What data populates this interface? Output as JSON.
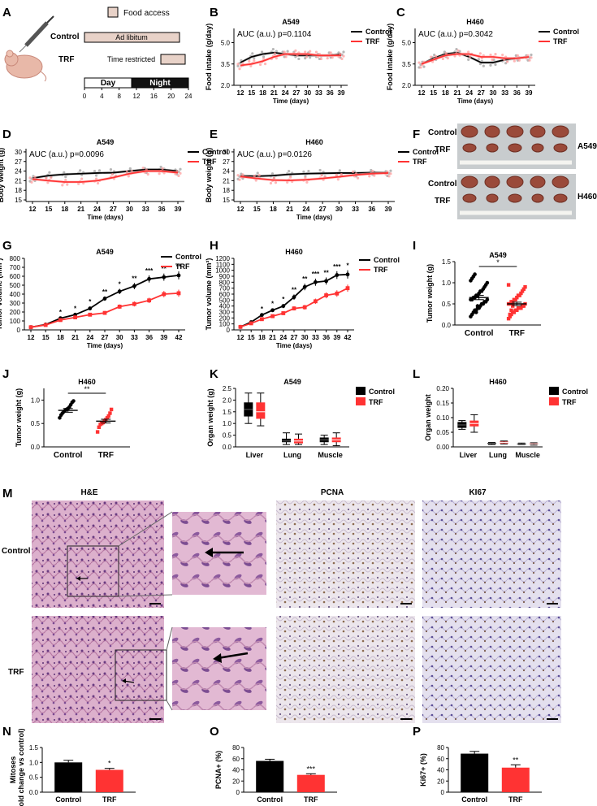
{
  "panel_letters": [
    "A",
    "B",
    "C",
    "D",
    "E",
    "F",
    "G",
    "H",
    "I",
    "J",
    "K",
    "L",
    "M",
    "N",
    "O",
    "P"
  ],
  "colors": {
    "control": "#000000",
    "trf": "#ff3333",
    "trf_light": "#ff9999",
    "grey": "#999999",
    "tissue_he": "#d9a7c4",
    "tissue_ihc": "#e8e0ea"
  },
  "schematic": {
    "legend": "Food access",
    "group_control": "Control",
    "group_trf": "TRF",
    "bar_control": "Ad libitum",
    "bar_trf": "Time restricted",
    "day": "Day",
    "night": "Night",
    "ticks": [
      "0",
      "4",
      "8",
      "12",
      "16",
      "20",
      "24"
    ]
  },
  "chart_data": [
    {
      "id": "B",
      "type": "line",
      "title": "A549",
      "annotation": "AUC (a.u.) p=0.1104",
      "xlabel": "Time (days)",
      "ylabel": "Food intake (g/day)",
      "x": [
        12,
        15,
        18,
        21,
        24,
        27,
        30,
        33,
        36,
        39
      ],
      "ylim": [
        2.0,
        6.0
      ],
      "yticks": [
        "2.0",
        "3.5",
        "5.0"
      ],
      "legend": [
        "Control",
        "TRF"
      ],
      "series": [
        {
          "name": "Control",
          "values": [
            3.6,
            4.0,
            4.2,
            4.3,
            4.2,
            4.1,
            4.1,
            4.1,
            4.1,
            4.2
          ]
        },
        {
          "name": "TRF",
          "values": [
            3.4,
            3.5,
            3.7,
            4.0,
            4.2,
            4.2,
            4.2,
            4.1,
            4.1,
            4.1
          ]
        }
      ]
    },
    {
      "id": "C",
      "type": "line",
      "title": "H460",
      "annotation": "AUC (a.u.) p=0.3042",
      "xlabel": "Time (days)",
      "ylabel": "Food intake (g/day)",
      "x": [
        12,
        15,
        18,
        21,
        24,
        27,
        30,
        33,
        36,
        39
      ],
      "ylim": [
        2.0,
        6.0
      ],
      "yticks": [
        "2.0",
        "3.5",
        "5.0"
      ],
      "legend": [
        "Control",
        "TRF"
      ],
      "series": [
        {
          "name": "Control",
          "values": [
            3.5,
            3.9,
            4.2,
            4.3,
            4.0,
            3.6,
            3.6,
            3.8,
            3.9,
            4.0
          ]
        },
        {
          "name": "TRF",
          "values": [
            3.5,
            3.8,
            4.1,
            4.2,
            4.2,
            4.0,
            4.0,
            3.9,
            3.9,
            4.0
          ]
        }
      ]
    },
    {
      "id": "D",
      "type": "line",
      "title": "A549",
      "annotation": "AUC (a.u.) p=0.0096",
      "xlabel": "Time (days)",
      "ylabel": "Body weight (g)",
      "x": [
        12,
        15,
        18,
        21,
        24,
        27,
        30,
        33,
        36,
        39
      ],
      "ylim": [
        14.5,
        31
      ],
      "yticks": [
        "15",
        "18",
        "21",
        "24",
        "27",
        "30"
      ],
      "legend": [
        "Control",
        "TRF"
      ],
      "series": [
        {
          "name": "Control",
          "values": [
            21.8,
            22.6,
            23.0,
            23.2,
            23.4,
            23.5,
            24.0,
            24.5,
            24.5,
            24.0
          ]
        },
        {
          "name": "TRF",
          "values": [
            21.5,
            21.0,
            20.6,
            20.6,
            21.0,
            22.0,
            23.2,
            24.0,
            24.0,
            23.5
          ]
        }
      ]
    },
    {
      "id": "E",
      "type": "line",
      "title": "H460",
      "annotation": "AUC (a.u.) p=0.0126",
      "xlabel": "Time (days)",
      "ylabel": "Body weight (g)",
      "x": [
        12,
        15,
        18,
        21,
        24,
        27,
        30,
        33,
        36,
        39
      ],
      "ylim": [
        14.5,
        31
      ],
      "yticks": [
        "15",
        "18",
        "21",
        "24",
        "27",
        "30"
      ],
      "legend": [
        "Control",
        "TRF"
      ],
      "series": [
        {
          "name": "Control",
          "values": [
            22.5,
            22.4,
            22.6,
            23.0,
            23.2,
            23.3,
            23.4,
            23.4,
            23.5,
            23.5
          ]
        },
        {
          "name": "TRF",
          "values": [
            22.3,
            21.7,
            21.2,
            21.1,
            21.3,
            21.7,
            22.2,
            22.8,
            23.2,
            23.4
          ]
        }
      ]
    },
    {
      "id": "G",
      "type": "line",
      "title": "A549",
      "xlabel": "Time (days)",
      "ylabel": "Tumor volume (mm³)",
      "x": [
        12,
        15,
        18,
        21,
        24,
        27,
        30,
        33,
        36,
        39,
        42
      ],
      "ylim": [
        0,
        800
      ],
      "yticks": [
        "0",
        "100",
        "200",
        "300",
        "400",
        "500",
        "600",
        "700",
        "800"
      ],
      "xticks": [
        "12",
        "15",
        "18",
        "21",
        "24",
        "27",
        "30",
        "33",
        "36",
        "39",
        "42"
      ],
      "legend": [
        "Control",
        "TRF"
      ],
      "annotations": [
        {
          "x": 18,
          "text": "*"
        },
        {
          "x": 21,
          "text": "*"
        },
        {
          "x": 24,
          "text": "*"
        },
        {
          "x": 27,
          "text": "**"
        },
        {
          "x": 30,
          "text": "*"
        },
        {
          "x": 33,
          "text": "**"
        },
        {
          "x": 36,
          "text": "***"
        },
        {
          "x": 39,
          "text": "**"
        },
        {
          "x": 42,
          "text": "**"
        }
      ],
      "series": [
        {
          "name": "Control",
          "values": [
            30,
            60,
            130,
            170,
            240,
            350,
            430,
            490,
            570,
            590,
            610
          ],
          "err": [
            5,
            8,
            15,
            18,
            22,
            25,
            30,
            35,
            40,
            40,
            45
          ]
        },
        {
          "name": "TRF",
          "values": [
            30,
            55,
            110,
            140,
            170,
            190,
            260,
            290,
            330,
            400,
            410
          ],
          "err": [
            5,
            8,
            12,
            15,
            18,
            20,
            25,
            28,
            30,
            35,
            40
          ]
        }
      ]
    },
    {
      "id": "H",
      "type": "line",
      "title": "H460",
      "xlabel": "Time (days)",
      "ylabel": "Tumor volume (mm³)",
      "x": [
        12,
        15,
        18,
        21,
        24,
        27,
        30,
        33,
        36,
        39,
        42
      ],
      "ylim": [
        0,
        1200
      ],
      "yticks": [
        "0",
        "100",
        "200",
        "300",
        "400",
        "500",
        "600",
        "700",
        "800",
        "900",
        "1000",
        "1100",
        "1200"
      ],
      "xticks": [
        "12",
        "15",
        "18",
        "21",
        "24",
        "27",
        "30",
        "33",
        "36",
        "39",
        "42"
      ],
      "legend": [
        "Control",
        "TRF"
      ],
      "annotations": [
        {
          "x": 18,
          "text": "*"
        },
        {
          "x": 21,
          "text": "*"
        },
        {
          "x": 24,
          "text": "*"
        },
        {
          "x": 27,
          "text": "**"
        },
        {
          "x": 30,
          "text": "**"
        },
        {
          "x": 33,
          "text": "***"
        },
        {
          "x": 36,
          "text": "**"
        },
        {
          "x": 39,
          "text": "***"
        },
        {
          "x": 42,
          "text": "*"
        }
      ],
      "series": [
        {
          "name": "Control",
          "values": [
            50,
            130,
            250,
            330,
            400,
            550,
            720,
            800,
            820,
            920,
            930
          ],
          "err": [
            8,
            15,
            25,
            30,
            35,
            45,
            55,
            60,
            60,
            65,
            70
          ]
        },
        {
          "name": "TRF",
          "values": [
            50,
            110,
            180,
            230,
            280,
            360,
            380,
            480,
            580,
            610,
            700
          ],
          "err": [
            8,
            12,
            20,
            25,
            30,
            35,
            40,
            45,
            50,
            55,
            60
          ]
        }
      ]
    },
    {
      "id": "I",
      "type": "scatter",
      "title": "A549",
      "ylabel": "Tumor weight (g)",
      "categories": [
        "Control",
        "TRF"
      ],
      "ylim": [
        0,
        1.5
      ],
      "yticks": [
        "0.0",
        "0.5",
        "1.0",
        "1.5"
      ],
      "sig": "*",
      "series": [
        {
          "name": "Control",
          "mean": 0.65,
          "sem": 0.05,
          "values": [
            0.2,
            0.25,
            0.3,
            0.35,
            0.35,
            0.4,
            0.4,
            0.45,
            0.5,
            0.5,
            0.55,
            0.55,
            0.6,
            0.6,
            0.6,
            0.65,
            0.65,
            0.7,
            0.7,
            0.75,
            0.8,
            0.8,
            0.85,
            0.9,
            0.95,
            1.0,
            1.05,
            1.1,
            1.15,
            1.2,
            0.3,
            0.45
          ]
        },
        {
          "name": "TRF",
          "mean": 0.5,
          "sem": 0.04,
          "values": [
            0.15,
            0.2,
            0.25,
            0.3,
            0.3,
            0.35,
            0.35,
            0.4,
            0.4,
            0.4,
            0.45,
            0.45,
            0.5,
            0.5,
            0.5,
            0.55,
            0.55,
            0.6,
            0.6,
            0.65,
            0.7,
            0.7,
            0.75,
            0.8,
            0.85,
            0.9,
            0.95,
            0.25,
            0.35,
            0.45
          ]
        }
      ]
    },
    {
      "id": "J",
      "type": "scatter",
      "title": "H460",
      "ylabel": "Tumor weight (g)",
      "categories": [
        "Control",
        "TRF"
      ],
      "ylim": [
        0,
        1.25
      ],
      "yticks": [
        "0.0",
        "0.5",
        "1.0"
      ],
      "sig": "**",
      "series": [
        {
          "name": "Control",
          "mean": 0.78,
          "sem": 0.04,
          "values": [
            0.62,
            0.68,
            0.72,
            0.75,
            0.78,
            0.8,
            0.82,
            0.85,
            0.9,
            0.95,
            0.98
          ]
        },
        {
          "name": "TRF",
          "mean": 0.55,
          "sem": 0.04,
          "values": [
            0.32,
            0.42,
            0.48,
            0.5,
            0.52,
            0.55,
            0.58,
            0.62,
            0.66,
            0.72,
            0.8
          ]
        }
      ]
    },
    {
      "id": "K",
      "type": "box",
      "title": "A549",
      "ylabel": "Organ weight (g)",
      "categories": [
        "Liver",
        "Lung",
        "Muscle"
      ],
      "ylim": [
        0,
        2.5
      ],
      "yticks": [
        "0.0",
        "0.5",
        "1.0",
        "1.5",
        "2.0",
        "2.5"
      ],
      "legend": [
        "Control",
        "TRF"
      ],
      "series": [
        {
          "name": "Control",
          "boxes": [
            [
              1.0,
              1.3,
              1.6,
              1.9,
              2.3
            ],
            [
              0.1,
              0.2,
              0.25,
              0.35,
              0.6
            ],
            [
              0.1,
              0.2,
              0.3,
              0.4,
              0.5
            ]
          ]
        },
        {
          "name": "TRF",
          "boxes": [
            [
              0.9,
              1.2,
              1.5,
              1.9,
              2.3
            ],
            [
              0.1,
              0.15,
              0.25,
              0.35,
              0.55
            ],
            [
              0.05,
              0.2,
              0.3,
              0.4,
              0.6
            ]
          ]
        }
      ]
    },
    {
      "id": "L",
      "type": "box",
      "title": "H460",
      "ylabel": "Organ weight",
      "categories": [
        "Liver",
        "Lung",
        "Muscle"
      ],
      "ylim": [
        0,
        0.2
      ],
      "yticks": [
        "0.00",
        "0.05",
        "0.10",
        "0.15",
        "0.20"
      ],
      "legend": [
        "Control",
        "TRF"
      ],
      "series": [
        {
          "name": "Control",
          "boxes": [
            [
              0.06,
              0.065,
              0.075,
              0.085,
              0.09
            ],
            [
              0.008,
              0.01,
              0.012,
              0.014,
              0.015
            ],
            [
              0.008,
              0.009,
              0.01,
              0.011,
              0.013
            ]
          ]
        },
        {
          "name": "TRF",
          "boxes": [
            [
              0.05,
              0.07,
              0.08,
              0.09,
              0.11
            ],
            [
              0.01,
              0.012,
              0.015,
              0.018,
              0.02
            ],
            [
              0.006,
              0.008,
              0.01,
              0.012,
              0.014
            ]
          ]
        }
      ]
    },
    {
      "id": "N",
      "type": "bar",
      "ylabel": "Mitoses\n(fold change vs control)",
      "categories": [
        "Control",
        "TRF"
      ],
      "values": [
        1.0,
        0.75
      ],
      "err": [
        0.07,
        0.05
      ],
      "ylim": [
        0,
        1.5
      ],
      "yticks": [
        "0.0",
        "0.5",
        "1.0",
        "1.5"
      ],
      "sig": [
        "",
        "*"
      ]
    },
    {
      "id": "O",
      "type": "bar",
      "ylabel": "PCNA+ (%)",
      "categories": [
        "Control",
        "TRF"
      ],
      "values": [
        56,
        31
      ],
      "err": [
        3,
        2
      ],
      "ylim": [
        0,
        80
      ],
      "yticks": [
        "0",
        "20",
        "40",
        "60",
        "80"
      ],
      "sig": [
        "",
        "***"
      ]
    },
    {
      "id": "P",
      "type": "bar",
      "ylabel": "Ki67+ (%)",
      "categories": [
        "Control",
        "TRF"
      ],
      "values": [
        69,
        44
      ],
      "err": [
        4,
        5
      ],
      "ylim": [
        0,
        80
      ],
      "yticks": [
        "0",
        "20",
        "40",
        "60",
        "80"
      ],
      "sig": [
        "",
        "**"
      ]
    }
  ],
  "photo_F": {
    "row1_control": "Control",
    "row1_trf": "TRF",
    "row1_cell": "A549",
    "row2_control": "Control",
    "row2_trf": "TRF",
    "row2_cell": "H460"
  },
  "histology": {
    "col_he": "H&E",
    "col_pcna": "PCNA",
    "col_ki67": "KI67",
    "row_control": "Control",
    "row_trf": "TRF"
  }
}
